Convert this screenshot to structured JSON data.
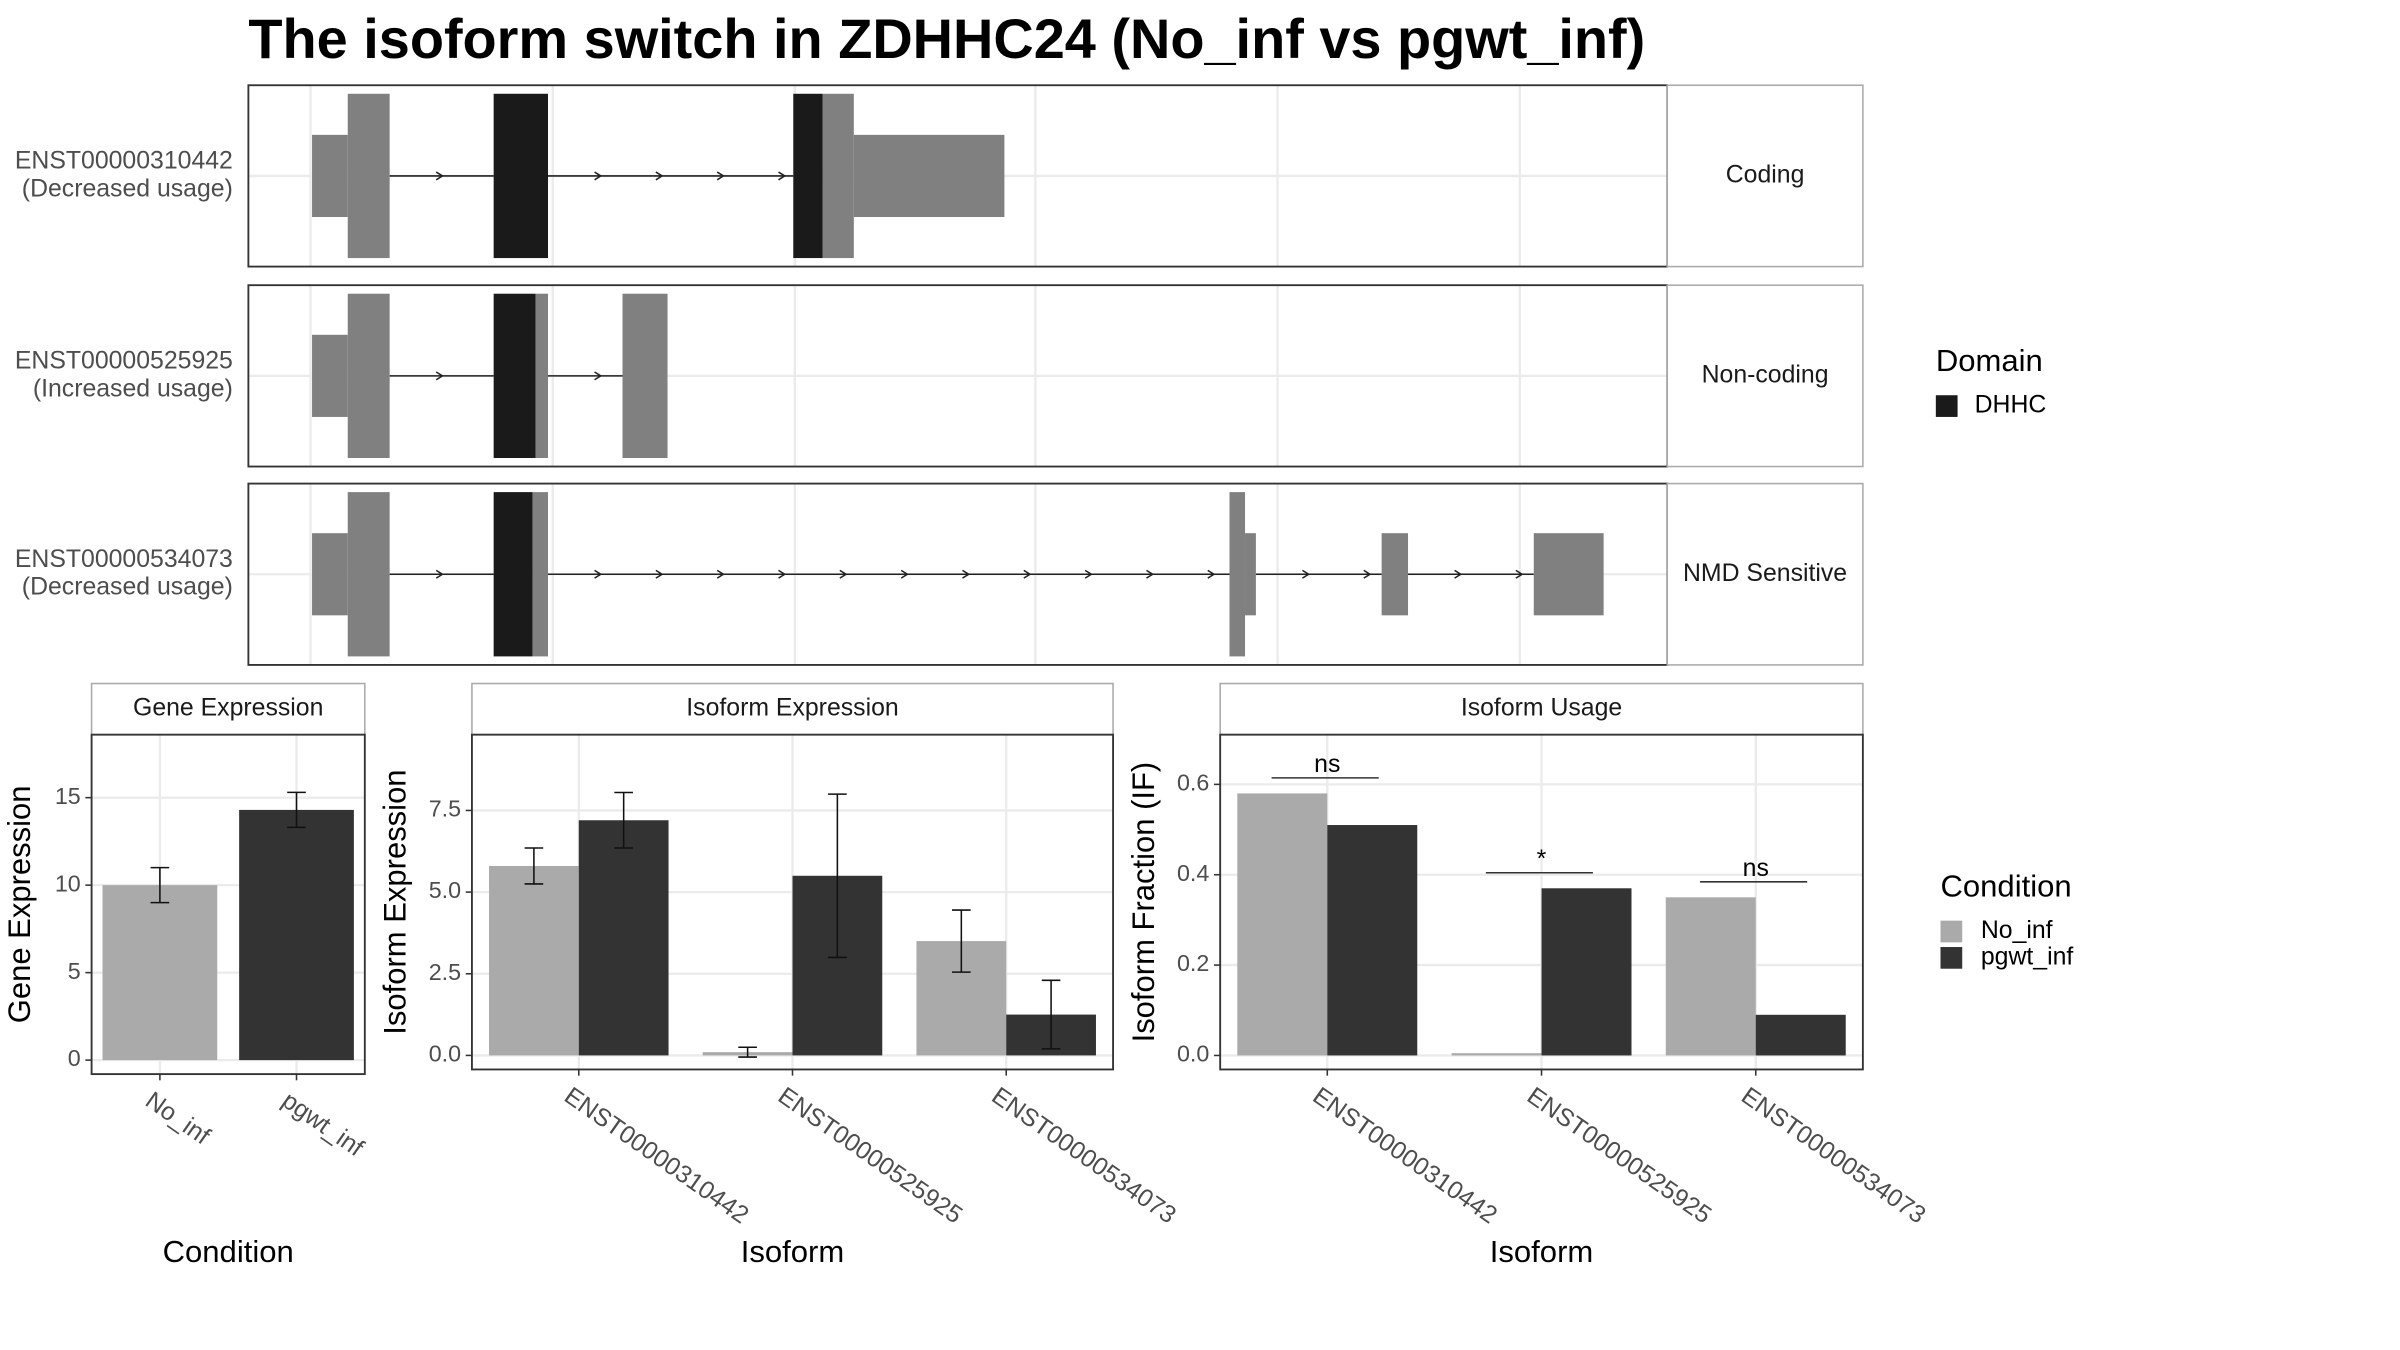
{
  "title": "The isoform switch in ZDHHC24 (No_inf vs pgwt_inf)",
  "transcripts": [
    {
      "name": "ENST00000310442",
      "usage": "(Decreased usage)",
      "category": "Coding"
    },
    {
      "name": "ENST00000525925",
      "usage": "(Increased usage)",
      "category": "Non-coding"
    },
    {
      "name": "ENST00000534073",
      "usage": "(Decreased usage)",
      "category": "NMD Sensitive"
    }
  ],
  "domain_legend": {
    "title": "Domain",
    "entries": [
      "DHHC"
    ]
  },
  "condition_legend": {
    "title": "Condition",
    "entries": [
      "No_inf",
      "pgwt_inf"
    ],
    "colors": [
      "#aaaaaa",
      "#333333"
    ]
  },
  "chart_data": [
    {
      "type": "bar",
      "title": "Gene Expression",
      "xlabel": "Condition",
      "ylabel": "Gene Expression",
      "categories": [
        "No_inf",
        "pgwt_inf"
      ],
      "values": [
        10.0,
        14.3
      ],
      "errors": [
        1.0,
        1.0
      ],
      "colors": [
        "#aaaaaa",
        "#333333"
      ],
      "ylim": [
        -0.8,
        18.6
      ],
      "yticks": [
        0,
        5,
        10,
        15
      ],
      "grid": true
    },
    {
      "type": "grouped_bar",
      "title": "Isoform Expression",
      "xlabel": "Isoform",
      "ylabel": "Isoform Expression",
      "categories": [
        "ENST00000310442",
        "ENST00000525925",
        "ENST00000534073"
      ],
      "series": [
        {
          "name": "No_inf",
          "color": "#aaaaaa",
          "values": [
            5.8,
            0.1,
            3.5
          ],
          "errors": [
            0.55,
            0.15,
            0.95
          ]
        },
        {
          "name": "pgwt_inf",
          "color": "#333333",
          "values": [
            7.2,
            5.5,
            1.25
          ],
          "errors": [
            0.85,
            2.5,
            1.05
          ]
        }
      ],
      "ylim": [
        -0.43,
        9.82
      ],
      "yticks": [
        {
          "value": 0,
          "label": "0.0"
        },
        2.5,
        {
          "value": 5,
          "label": "5.0"
        },
        7.5
      ],
      "grid": true
    },
    {
      "type": "grouped_bar",
      "title": "Isoform Usage",
      "xlabel": "Isoform",
      "ylabel": "Isoform Fraction (IF)",
      "categories": [
        "ENST00000310442",
        "ENST00000525925",
        "ENST00000534073"
      ],
      "series": [
        {
          "name": "No_inf",
          "color": "#aaaaaa",
          "values": [
            0.58,
            0.005,
            0.35
          ]
        },
        {
          "name": "pgwt_inf",
          "color": "#333333",
          "values": [
            0.51,
            0.37,
            0.09
          ]
        }
      ],
      "annotations": [
        "ns",
        "*",
        "ns"
      ],
      "ylim": [
        -0.031,
        0.71
      ],
      "yticks": [
        {
          "value": 0,
          "label": "0.0"
        },
        0.2,
        0.4,
        0.6
      ],
      "grid": true
    }
  ]
}
